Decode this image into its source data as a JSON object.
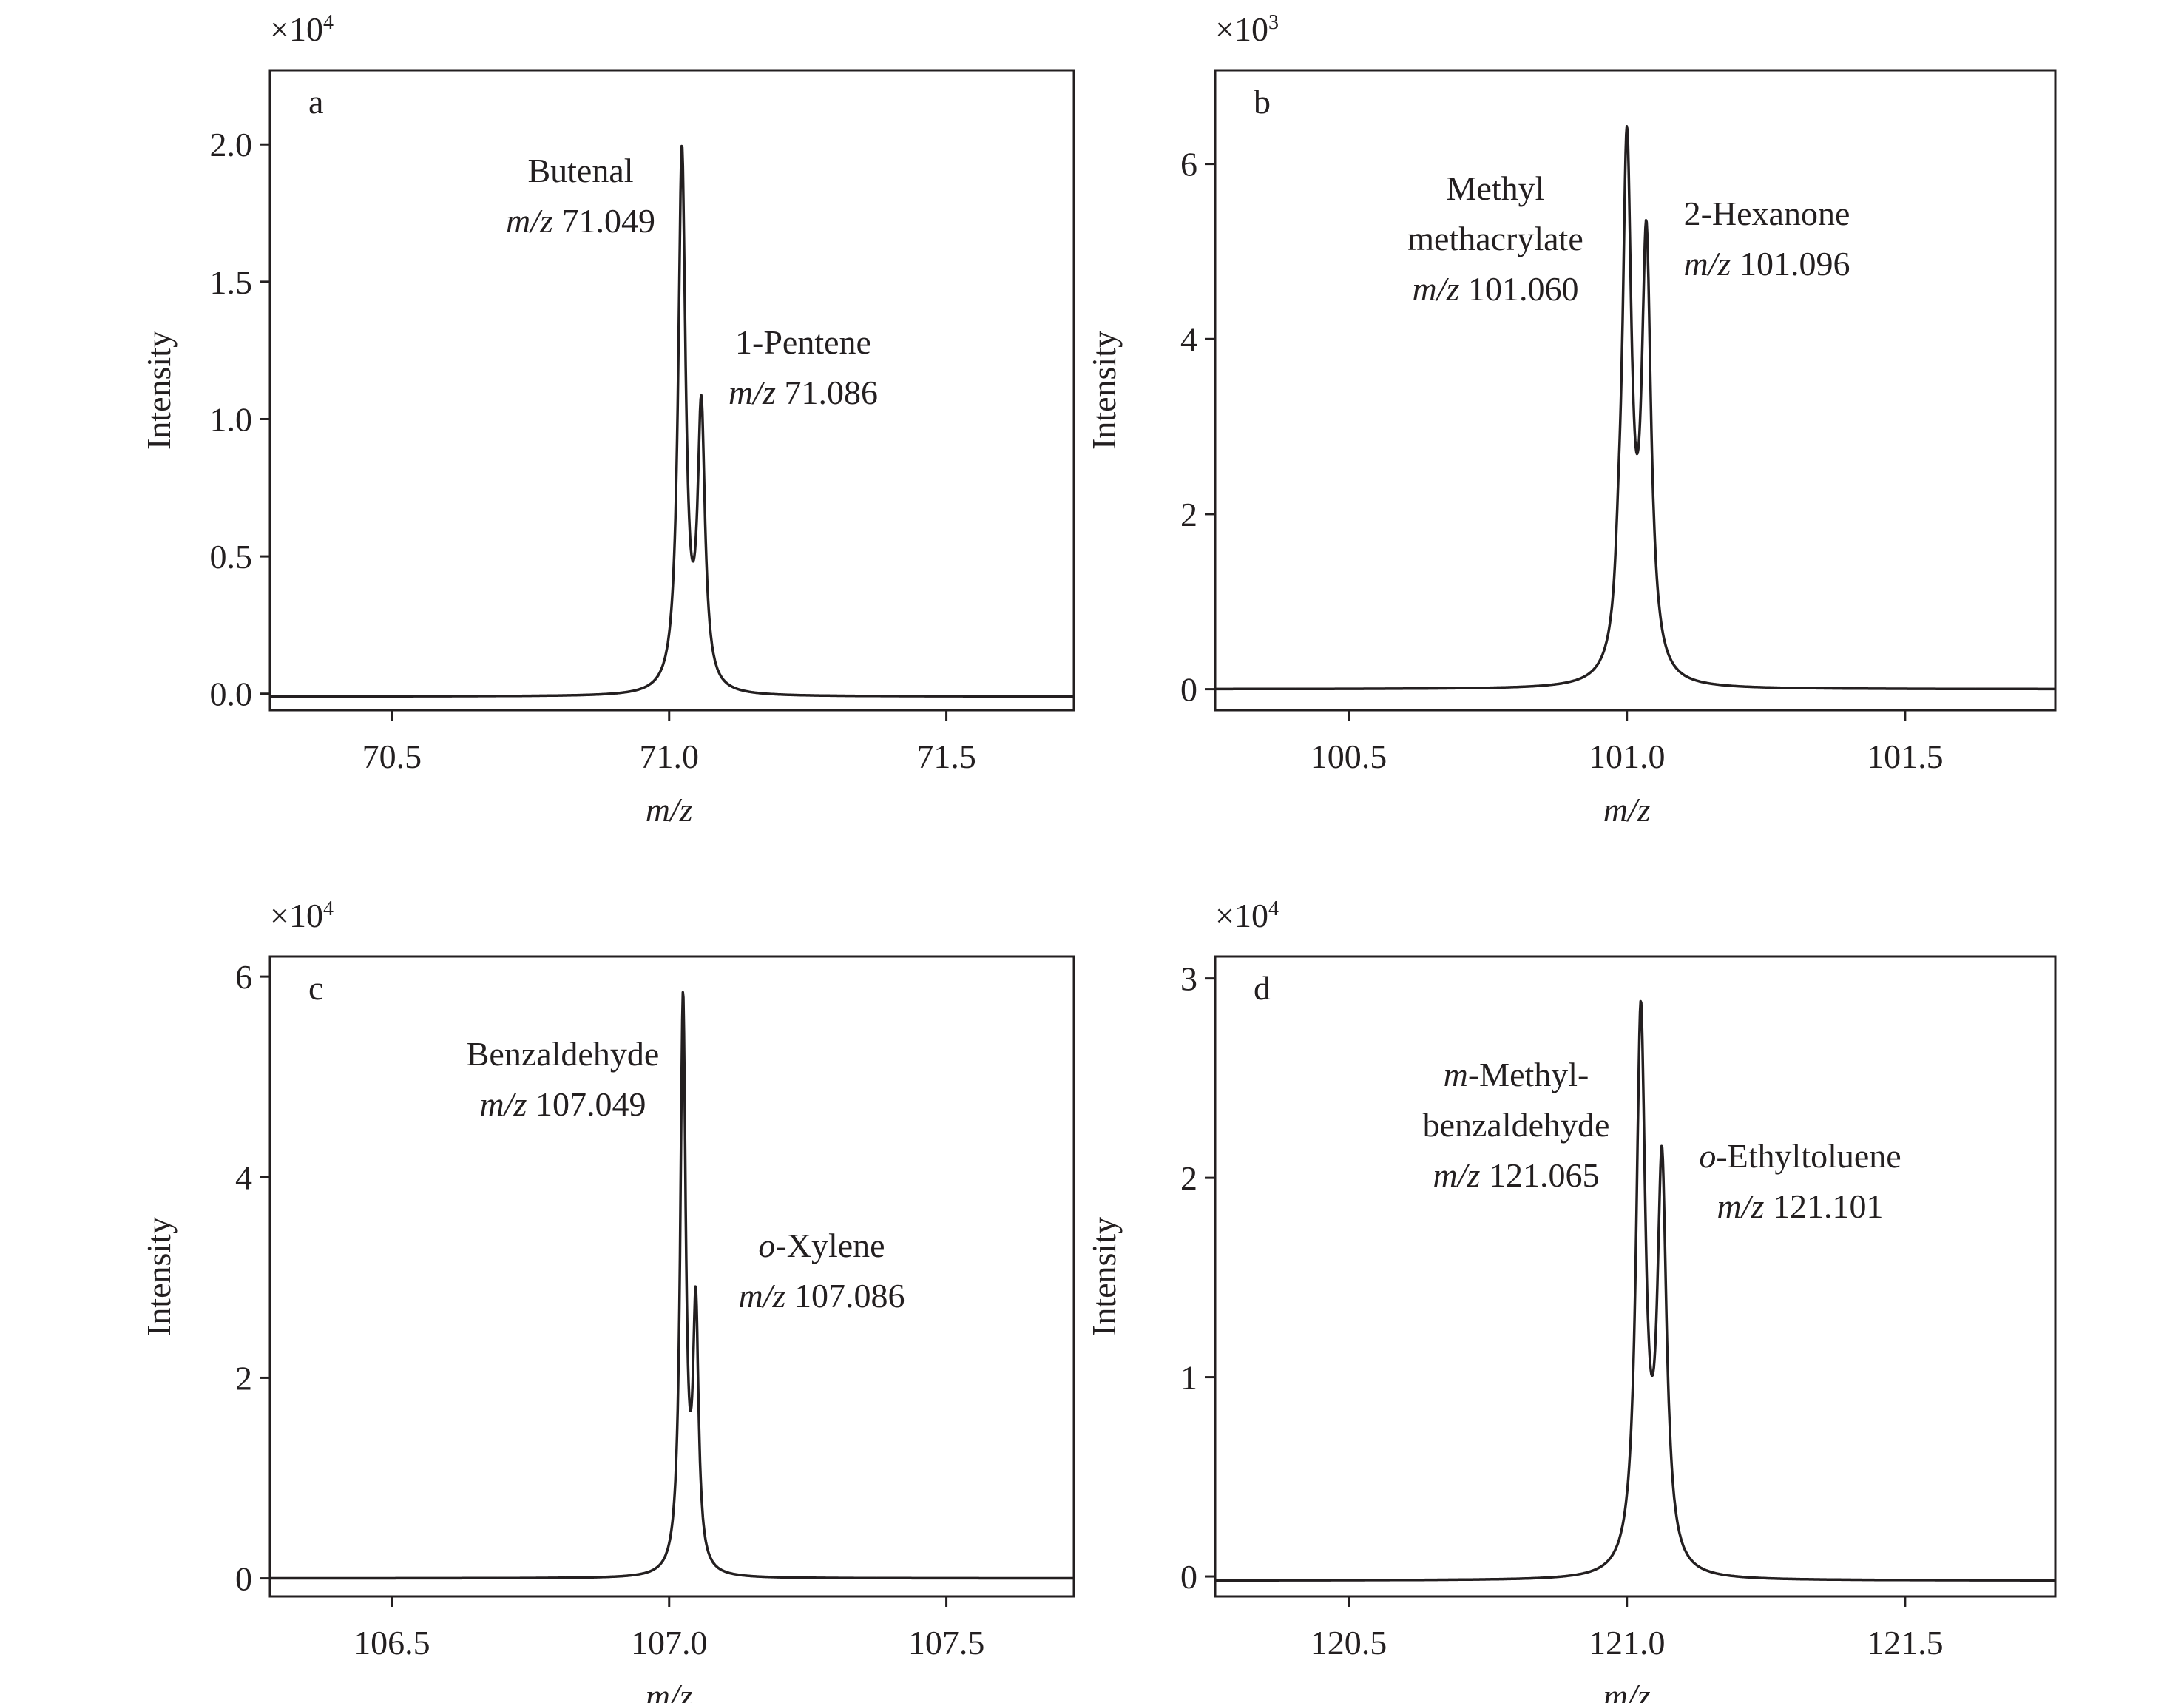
{
  "chart_data": [
    {
      "type": "line",
      "panel": "a",
      "multiplier": {
        "base": "×10",
        "exp": "4"
      },
      "xlabel": {
        "italic": "m/z"
      },
      "ylabel": "Intensity",
      "xlim": [
        70.28,
        71.73
      ],
      "ylim": [
        -0.06,
        2.27
      ],
      "xticks": [
        {
          "v": 70.5,
          "label": "70.5"
        },
        {
          "v": 71.0,
          "label": "71.0"
        },
        {
          "v": 71.5,
          "label": "71.5"
        }
      ],
      "yticks": [
        {
          "v": 0,
          "label": "0.0"
        },
        {
          "v": 0.5,
          "label": "0.5"
        },
        {
          "v": 1.0,
          "label": "1.0"
        },
        {
          "v": 1.5,
          "label": "1.5"
        },
        {
          "v": 2.0,
          "label": "2.0"
        }
      ],
      "baseline": -0.01,
      "peaks": [
        {
          "center": 71.023,
          "height": 1.96,
          "width": 0.008
        },
        {
          "center": 71.058,
          "height": 1.0,
          "width": 0.008
        }
      ],
      "annotations": [
        {
          "lines": [
            [
              {
                "t": "Butenal"
              }
            ],
            [
              {
                "t": "m/z",
                "i": true
              },
              {
                "t": " 71.049"
              }
            ]
          ],
          "at": "peak1-left"
        },
        {
          "lines": [
            [
              {
                "t": "1-Pentene"
              }
            ],
            [
              {
                "t": "m/z",
                "i": true
              },
              {
                "t": " 71.086"
              }
            ]
          ],
          "at": "peak2-right"
        }
      ]
    },
    {
      "type": "line",
      "panel": "b",
      "multiplier": {
        "base": "×10",
        "exp": "3"
      },
      "xlabel": {
        "italic": "m/z"
      },
      "ylabel": "Intensity",
      "xlim": [
        100.26,
        101.77
      ],
      "ylim": [
        -0.24,
        7.07
      ],
      "xticks": [
        {
          "v": 100.5,
          "label": "100.5"
        },
        {
          "v": 101.0,
          "label": "101.0"
        },
        {
          "v": 101.5,
          "label": "101.5"
        }
      ],
      "yticks": [
        {
          "v": 0,
          "label": "0"
        },
        {
          "v": 2,
          "label": "2"
        },
        {
          "v": 4,
          "label": "4"
        },
        {
          "v": 6,
          "label": "6"
        }
      ],
      "baseline": 0,
      "peaks": [
        {
          "center": 100.985,
          "height": 0.45,
          "width": 0.006
        },
        {
          "center": 101.0,
          "height": 6.0,
          "width": 0.01
        },
        {
          "center": 101.035,
          "height": 4.9,
          "width": 0.01
        }
      ],
      "annotations": [
        {
          "lines": [
            [
              {
                "t": "Methyl"
              }
            ],
            [
              {
                "t": "methacrylate"
              }
            ],
            [
              {
                "t": "m/z",
                "i": true
              },
              {
                "t": " 101.060"
              }
            ]
          ],
          "at": "peak1-left"
        },
        {
          "lines": [
            [
              {
                "t": "2-Hexanone"
              }
            ],
            [
              {
                "t": "m/z",
                "i": true
              },
              {
                "t": " 101.096"
              }
            ]
          ],
          "at": "peak2-right"
        }
      ]
    },
    {
      "type": "line",
      "panel": "c",
      "multiplier": {
        "base": "×10",
        "exp": "4"
      },
      "xlabel": {
        "italic": "m/z"
      },
      "ylabel": "Intensity",
      "xlim": [
        106.28,
        107.73
      ],
      "ylim": [
        -0.18,
        6.2
      ],
      "xticks": [
        {
          "v": 106.5,
          "label": "106.5"
        },
        {
          "v": 107.0,
          "label": "107.0"
        },
        {
          "v": 107.5,
          "label": "107.5"
        }
      ],
      "yticks": [
        {
          "v": 0,
          "label": "0"
        },
        {
          "v": 2,
          "label": "2"
        },
        {
          "v": 4,
          "label": "4"
        },
        {
          "v": 6,
          "label": "6"
        }
      ],
      "baseline": 0,
      "peaks": [
        {
          "center": 107.025,
          "height": 5.7,
          "width": 0.006
        },
        {
          "center": 107.048,
          "height": 2.55,
          "width": 0.006
        }
      ],
      "annotations": [
        {
          "lines": [
            [
              {
                "t": "Benzaldehyde"
              }
            ],
            [
              {
                "t": "m/z",
                "i": true
              },
              {
                "t": " 107.049"
              }
            ]
          ],
          "at": "peak1-left"
        },
        {
          "lines": [
            [
              {
                "t": "o",
                "i": true
              },
              {
                "t": "-Xylene"
              }
            ],
            [
              {
                "t": "m/z",
                "i": true
              },
              {
                "t": " 107.086"
              }
            ]
          ],
          "at": "peak2-right"
        }
      ]
    },
    {
      "type": "line",
      "panel": "d",
      "multiplier": {
        "base": "×10",
        "exp": "4"
      },
      "xlabel": {
        "italic": "m/z"
      },
      "ylabel": "Intensity",
      "xlim": [
        120.26,
        121.77
      ],
      "ylim": [
        -0.1,
        3.11
      ],
      "xticks": [
        {
          "v": 120.5,
          "label": "120.5"
        },
        {
          "v": 121.0,
          "label": "121.0"
        },
        {
          "v": 121.5,
          "label": "121.5"
        }
      ],
      "yticks": [
        {
          "v": 0,
          "label": "0"
        },
        {
          "v": 1,
          "label": "1"
        },
        {
          "v": 2,
          "label": "2"
        },
        {
          "v": 3,
          "label": "3"
        }
      ],
      "baseline": -0.02,
      "peaks": [
        {
          "center": 121.025,
          "height": 2.78,
          "width": 0.01
        },
        {
          "center": 121.063,
          "height": 2.0,
          "width": 0.01
        }
      ],
      "annotations": [
        {
          "lines": [
            [
              {
                "t": "m",
                "i": true
              },
              {
                "t": "-Methyl-"
              }
            ],
            [
              {
                "t": "benzaldehyde"
              }
            ],
            [
              {
                "t": "m/z",
                "i": true
              },
              {
                "t": " 121.065"
              }
            ]
          ],
          "at": "peak1-left"
        },
        {
          "lines": [
            [
              {
                "t": "o",
                "i": true
              },
              {
                "t": "-Ethyltoluene"
              }
            ],
            [
              {
                "t": "m/z",
                "i": true
              },
              {
                "t": " 121.101"
              }
            ]
          ],
          "at": "peak2-right"
        }
      ]
    }
  ]
}
